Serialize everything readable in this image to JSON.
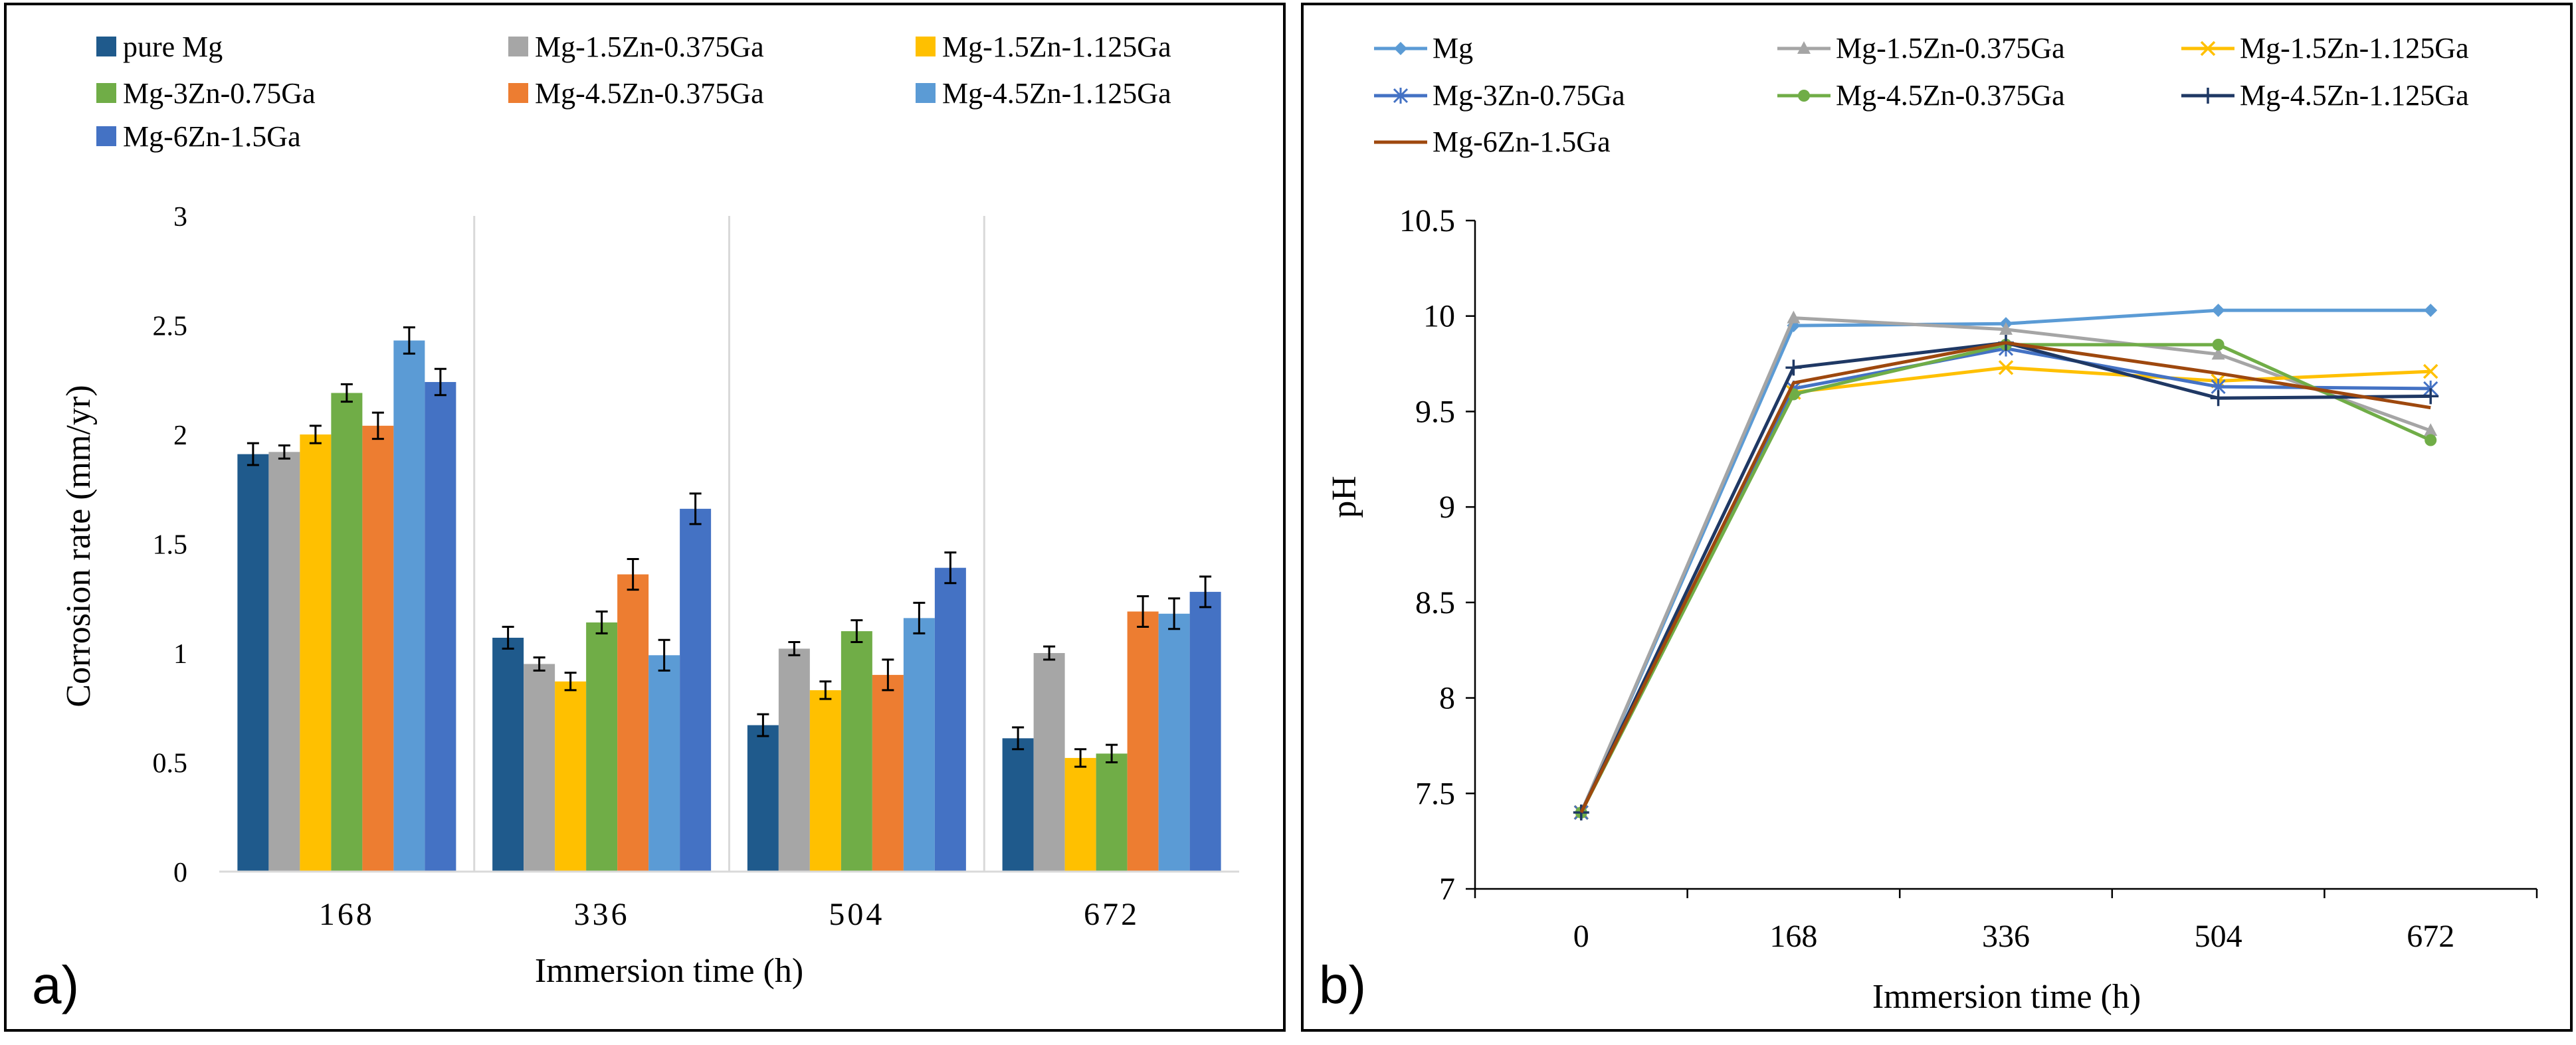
{
  "chart_data": [
    {
      "panel": "a)",
      "type": "bar",
      "xlabel": "Immersion time (h)",
      "ylabel": "Corrosion rate (mm/yr)",
      "ylim": [
        0,
        3
      ],
      "yticks": [
        "0",
        "0.5",
        "1",
        "1.5",
        "2",
        "2.5",
        "3"
      ],
      "categories": [
        "168",
        "336",
        "504",
        "672"
      ],
      "legend_position": "top",
      "series": [
        {
          "name": "pure Mg",
          "color": "#1F5A8C",
          "values": [
            1.91,
            1.07,
            0.67,
            0.61
          ],
          "errors": [
            0.05,
            0.05,
            0.05,
            0.05
          ]
        },
        {
          "name": "Mg-1.5Zn-0.375Ga",
          "color": "#A6A6A6",
          "values": [
            1.92,
            0.95,
            1.02,
            1.0
          ],
          "errors": [
            0.03,
            0.03,
            0.03,
            0.03
          ]
        },
        {
          "name": "Mg-1.5Zn-1.125Ga",
          "color": "#FFC000",
          "values": [
            2.0,
            0.87,
            0.83,
            0.52
          ],
          "errors": [
            0.04,
            0.04,
            0.04,
            0.04
          ]
        },
        {
          "name": "Mg-3Zn-0.75Ga",
          "color": "#70AD47",
          "values": [
            2.19,
            1.14,
            1.1,
            0.54
          ],
          "errors": [
            0.04,
            0.05,
            0.05,
            0.04
          ]
        },
        {
          "name": "Mg-4.5Zn-0.375Ga",
          "color": "#ED7D31",
          "values": [
            2.04,
            1.36,
            0.9,
            1.19
          ],
          "errors": [
            0.06,
            0.07,
            0.07,
            0.07
          ]
        },
        {
          "name": "Mg-4.5Zn-1.125Ga",
          "color": "#5B9BD5",
          "values": [
            2.43,
            0.99,
            1.16,
            1.18
          ],
          "errors": [
            0.06,
            0.07,
            0.07,
            0.07
          ]
        },
        {
          "name": "Mg-6Zn-1.5Ga",
          "color": "#4472C4",
          "values": [
            2.24,
            1.66,
            1.39,
            1.28
          ],
          "errors": [
            0.06,
            0.07,
            0.07,
            0.07
          ]
        }
      ]
    },
    {
      "panel": "b)",
      "type": "line",
      "xlabel": "Immersion time (h)",
      "ylabel": "pH",
      "ylim": [
        7,
        10.5
      ],
      "yticks": [
        "7",
        "7.5",
        "8",
        "8.5",
        "9",
        "9.5",
        "10",
        "10.5"
      ],
      "x": [
        "0",
        "168",
        "336",
        "504",
        "672"
      ],
      "legend_position": "top",
      "series": [
        {
          "name": "Mg",
          "color": "#5B9BD5",
          "marker": "diamond",
          "values": [
            7.4,
            9.95,
            9.96,
            10.03,
            10.03
          ]
        },
        {
          "name": "Mg-1.5Zn-0.375Ga",
          "color": "#A5A5A5",
          "marker": "triangle",
          "values": [
            7.4,
            9.99,
            9.93,
            9.8,
            9.4
          ]
        },
        {
          "name": "Mg-1.5Zn-1.125Ga",
          "color": "#FFC000",
          "marker": "x",
          "values": [
            7.4,
            9.6,
            9.73,
            9.66,
            9.71
          ]
        },
        {
          "name": "Mg-3Zn-0.75Ga",
          "color": "#4472C4",
          "marker": "star",
          "values": [
            7.4,
            9.62,
            9.83,
            9.63,
            9.62
          ]
        },
        {
          "name": "Mg-4.5Zn-0.375Ga",
          "color": "#70AD47",
          "marker": "circle",
          "values": [
            7.4,
            9.59,
            9.85,
            9.85,
            9.35
          ]
        },
        {
          "name": "Mg-4.5Zn-1.125Ga",
          "color": "#1F3864",
          "marker": "plus",
          "values": [
            7.4,
            9.73,
            9.86,
            9.57,
            9.58
          ]
        },
        {
          "name": "Mg-6Zn-1.5Ga",
          "color": "#9E480E",
          "marker": "none",
          "values": [
            7.4,
            9.65,
            9.86,
            9.7,
            9.52
          ]
        }
      ]
    }
  ]
}
